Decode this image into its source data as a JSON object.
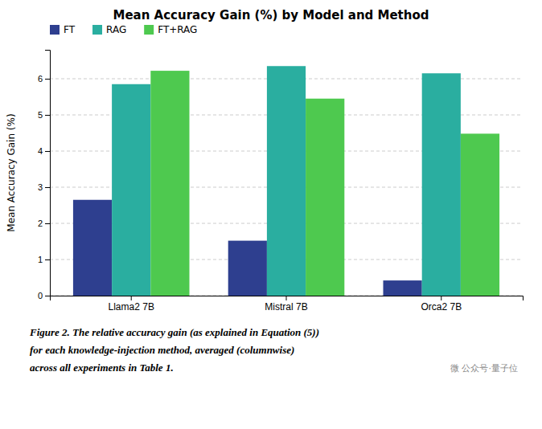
{
  "chart_data": {
    "type": "bar",
    "title": "Mean Accuracy Gain (%) by Model and Method",
    "ylabel": "Mean Accuracy Gain (%)",
    "categories": [
      "Llama2 7B",
      "Mistral 7B",
      "Orca2 7B"
    ],
    "series": [
      {
        "name": "FT",
        "color": "#2e3f8f",
        "values": [
          2.65,
          1.52,
          0.42
        ]
      },
      {
        "name": "RAG",
        "color": "#2aaea0",
        "values": [
          5.85,
          6.35,
          6.15
        ]
      },
      {
        "name": "FT+RAG",
        "color": "#4ec94f",
        "values": [
          6.22,
          5.45,
          4.48
        ]
      }
    ],
    "ylim": [
      0,
      6.8
    ],
    "yticks": [
      0,
      1,
      2,
      3,
      4,
      5,
      6
    ],
    "grid": true,
    "legend": "upper left",
    "annotations": [
      "Figure 2. The relative accuracy gain (as explained in Equation (5))",
      "for each knowledge-injection method,  averaged  (columnwise)",
      "across all experiments in Table 1.",
      "微  公众号·量子位"
    ]
  }
}
